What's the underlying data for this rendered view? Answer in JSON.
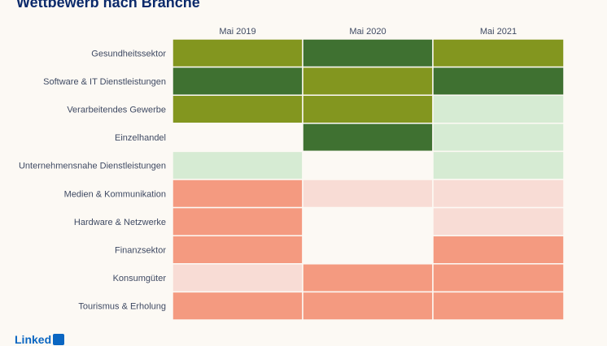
{
  "title": "Wettbewerb nach Branche",
  "colors": {
    "background": "#fcf9f4",
    "strong_growth": "#3f7131",
    "growth": "#83961f",
    "slight_growth": "#d6ebd3",
    "neutral": "#fcf9f4",
    "slight_decline": "#f8dcd5",
    "decline": "#f49a80"
  },
  "chart_data": {
    "type": "heatmap",
    "title": "Wettbewerb nach Branche",
    "columns": [
      "Mai 2019",
      "Mai 2020",
      "Mai 2021"
    ],
    "rows": [
      "Gesundheitssektor",
      "Software & IT Dienstleistungen",
      "Verarbeitendes Gewerbe",
      "Einzelhandel",
      "Unternehmensnahe Dienstleistungen",
      "Medien & Kommunikation",
      "Hardware & Netzwerke",
      "Finanzsektor",
      "Konsumgüter",
      "Tourismus & Erholung"
    ],
    "levels": {
      "strong_growth": 3,
      "growth": 2,
      "slight_growth": 1,
      "neutral": 0,
      "slight_decline": -1,
      "decline": -2
    },
    "values": [
      [
        2,
        3,
        2
      ],
      [
        3,
        2,
        3
      ],
      [
        2,
        2,
        1
      ],
      [
        0,
        3,
        1
      ],
      [
        1,
        0,
        1
      ],
      [
        -2,
        -1,
        -1
      ],
      [
        -2,
        0,
        -1
      ],
      [
        -2,
        0,
        -2
      ],
      [
        -1,
        -2,
        -2
      ],
      [
        -2,
        -2,
        -2
      ]
    ]
  },
  "brand": {
    "name": "Linked",
    "box_label": "in"
  }
}
